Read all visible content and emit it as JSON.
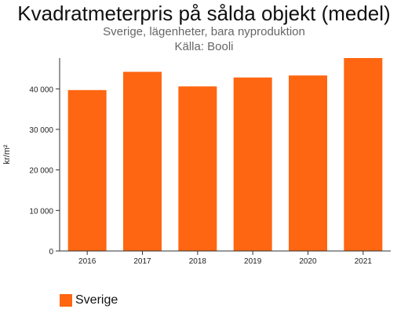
{
  "chart_data": {
    "type": "bar",
    "title": "Kvadratmeterpris på sålda objekt (medel)",
    "subtitle": "Sverige, lägenheter, bara nyproduktion",
    "source": "Källa: Booli",
    "ylabel": "kr/m²",
    "xlabel": "",
    "categories": [
      "2016",
      "2017",
      "2018",
      "2019",
      "2020",
      "2021"
    ],
    "series": [
      {
        "name": "Sverige",
        "values": [
          39700,
          44200,
          40600,
          42800,
          43300,
          47600
        ]
      }
    ],
    "ylim": [
      0,
      47600
    ],
    "yticks": [
      0,
      10000,
      20000,
      30000,
      40000
    ],
    "ytick_labels": [
      "0",
      "10 000",
      "20 000",
      "30 000",
      "40 000"
    ],
    "bar_color": "#ff6611",
    "grid": false,
    "legend_position": "bottom-left"
  }
}
